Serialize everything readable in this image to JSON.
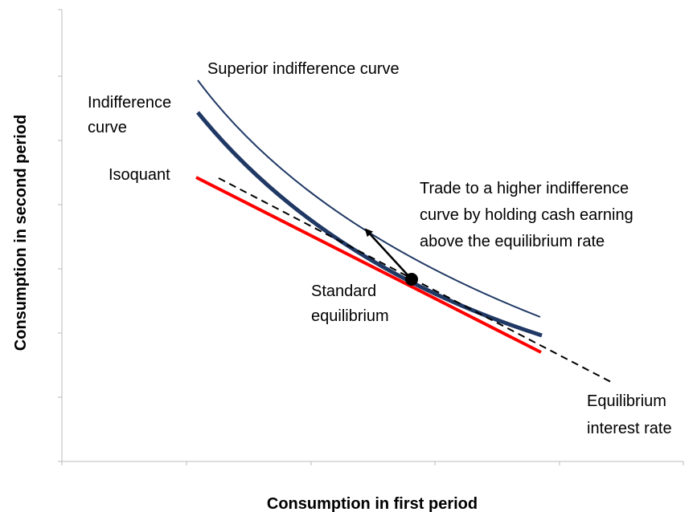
{
  "axes": {
    "x_label": "Consumption in first period",
    "y_label": "Consumption in second period"
  },
  "labels": {
    "superior_curve": "Superior indifference curve",
    "indifference_curve": [
      "Indifference",
      "curve"
    ],
    "isoquant": "Isoquant",
    "trade": [
      "Trade to a higher indifference",
      "curve by holding cash earning",
      "above the equilibrium rate"
    ],
    "standard_equilibrium": [
      "Standard",
      "equilibrium"
    ],
    "equilibrium_rate": [
      "Equilibrium",
      "interest rate"
    ]
  }
}
